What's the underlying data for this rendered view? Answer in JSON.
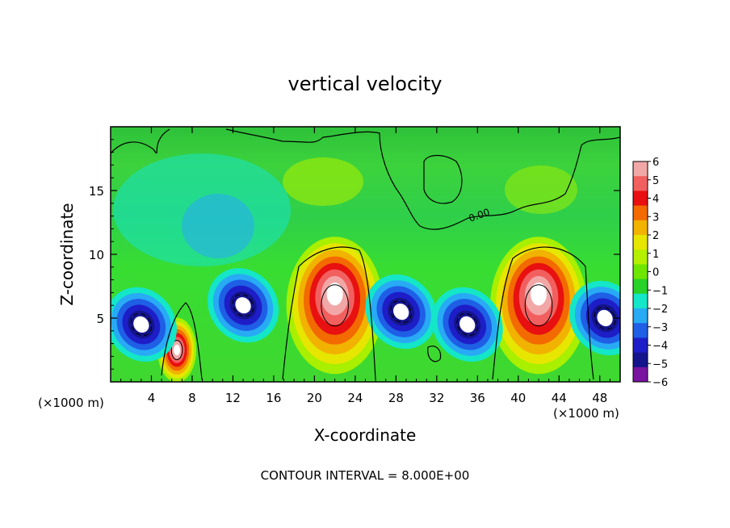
{
  "chart_data": {
    "type": "heatmap",
    "title": "vertical velocity",
    "xlabel": "X-coordinate",
    "ylabel": "Z-coordinate",
    "x_unit_left": "(×1000 m)",
    "x_unit_right": "(×1000 m)",
    "xlim": [
      0,
      50
    ],
    "ylim": [
      0,
      20
    ],
    "x_ticks": [
      4,
      8,
      12,
      16,
      20,
      24,
      28,
      32,
      36,
      40,
      44,
      48
    ],
    "y_ticks": [
      5,
      10,
      15
    ],
    "footer": "CONTOUR INTERVAL = 8.000E+00",
    "contour_label": "0.00",
    "colorbar": {
      "levels": [
        6,
        5,
        4,
        3,
        2,
        1,
        0,
        -1,
        -2,
        -3,
        -4,
        -5,
        -6
      ],
      "tick_labels": [
        "6",
        "5",
        "4",
        "3",
        "2",
        "1",
        "0",
        "−1",
        "−2",
        "−3",
        "−4",
        "−5",
        "−6"
      ],
      "colors": [
        "#f2a7a7",
        "#f25f5f",
        "#e81010",
        "#f26a00",
        "#f2b200",
        "#e6e600",
        "#b4f000",
        "#6ee600",
        "#28d228",
        "#14e6c8",
        "#28aaf5",
        "#1e5fe6",
        "#1e1ec8",
        "#14148c",
        "#7814a0"
      ]
    },
    "features": [
      {
        "kind": "updraft",
        "x": 22,
        "z": 6,
        "peak": 6
      },
      {
        "kind": "updraft",
        "x": 42,
        "z": 6,
        "peak": 6
      },
      {
        "kind": "updraft",
        "x": 6.5,
        "z": 2.5,
        "peak": 6
      },
      {
        "kind": "downdraft",
        "x": 13,
        "z": 6,
        "peak": -6
      },
      {
        "kind": "downdraft",
        "x": 28.5,
        "z": 5.5,
        "peak": -6
      },
      {
        "kind": "downdraft",
        "x": 35,
        "z": 4.5,
        "peak": -6
      },
      {
        "kind": "downdraft",
        "x": 3,
        "z": 4.5,
        "peak": -6
      },
      {
        "kind": "downdraft",
        "x": 48.5,
        "z": 5,
        "peak": -6
      }
    ]
  }
}
